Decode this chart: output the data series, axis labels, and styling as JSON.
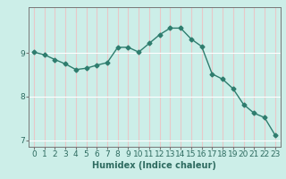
{
  "x": [
    0,
    1,
    2,
    3,
    4,
    5,
    6,
    7,
    8,
    9,
    10,
    11,
    12,
    13,
    14,
    15,
    16,
    17,
    18,
    19,
    20,
    21,
    22,
    23
  ],
  "y": [
    9.02,
    8.96,
    8.85,
    8.75,
    8.62,
    8.65,
    8.72,
    8.78,
    9.13,
    9.13,
    9.02,
    9.22,
    9.42,
    9.57,
    9.57,
    9.32,
    9.15,
    8.52,
    8.4,
    8.18,
    7.82,
    7.62,
    7.52,
    7.12
  ],
  "line_color": "#2e7d6e",
  "marker": "D",
  "markersize": 2.5,
  "linewidth": 1.0,
  "bg_color": "#cceee8",
  "grid_color": "#ffffff",
  "xlabel": "Humidex (Indice chaleur)",
  "xlim": [
    -0.5,
    23.5
  ],
  "ylim": [
    6.85,
    10.05
  ],
  "yticks": [
    7,
    8,
    9
  ],
  "xtick_labels": [
    "0",
    "1",
    "2",
    "3",
    "4",
    "5",
    "6",
    "7",
    "8",
    "9",
    "10",
    "11",
    "12",
    "13",
    "14",
    "15",
    "16",
    "17",
    "18",
    "19",
    "20",
    "21",
    "22",
    "23"
  ],
  "xlabel_fontsize": 7,
  "tick_fontsize": 6.5,
  "label_color": "#2e6b60"
}
